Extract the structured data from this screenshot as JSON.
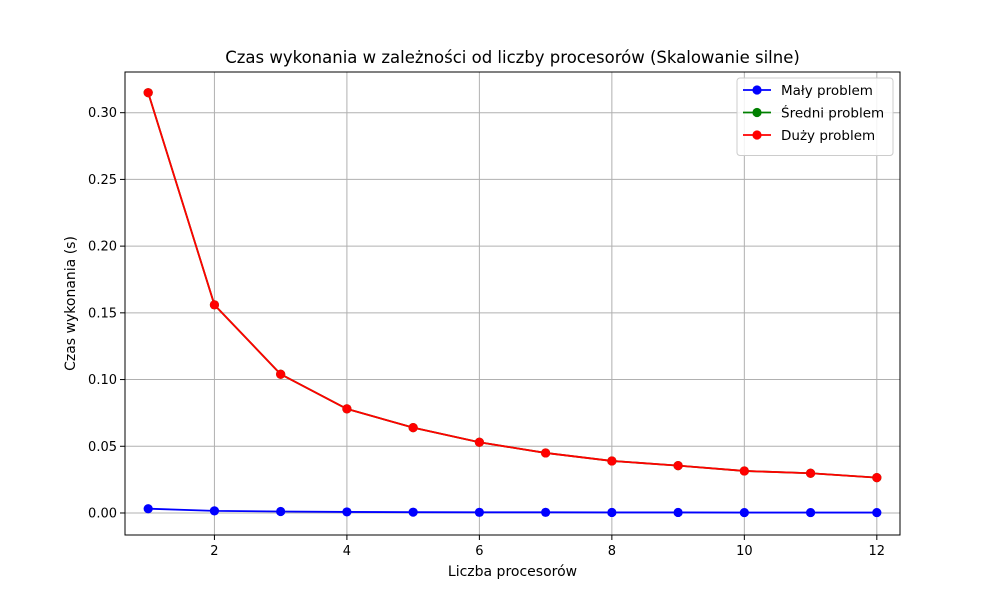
{
  "chart_data": {
    "type": "line",
    "title": "Czas wykonania w zależności od liczby procesorów (Skalowanie silne)",
    "xlabel": "Liczba procesorów",
    "ylabel": "Czas wykonania (s)",
    "xlim": [
      0.65,
      12.35
    ],
    "ylim": [
      -0.0165,
      0.3305
    ],
    "xticks": [
      2,
      4,
      6,
      8,
      10,
      12
    ],
    "yticks": [
      0.0,
      0.05,
      0.1,
      0.15,
      0.2,
      0.25,
      0.3
    ],
    "ytick_labels": [
      "0.00",
      "0.05",
      "0.10",
      "0.15",
      "0.20",
      "0.25",
      "0.30"
    ],
    "grid": true,
    "legend_position": "top-right",
    "x": [
      1,
      2,
      3,
      4,
      5,
      6,
      7,
      8,
      9,
      10,
      11,
      12
    ],
    "series": [
      {
        "name": "Mały problem",
        "color": "#0000ff",
        "values": [
          0.0032,
          0.0016,
          0.0011,
          0.0008,
          0.0006,
          0.0005,
          0.0005,
          0.0004,
          0.0004,
          0.0003,
          0.0003,
          0.0003
        ]
      },
      {
        "name": "Średni problem",
        "color": "#008000",
        "values": [
          0.315,
          0.156,
          0.104,
          0.078,
          0.064,
          0.053,
          0.045,
          0.039,
          0.0355,
          0.0315,
          0.0298,
          0.0265
        ]
      },
      {
        "name": "Duży problem",
        "color": "#ff0000",
        "values": [
          0.315,
          0.156,
          0.104,
          0.078,
          0.064,
          0.053,
          0.045,
          0.039,
          0.0355,
          0.0315,
          0.0298,
          0.0265
        ]
      }
    ]
  }
}
